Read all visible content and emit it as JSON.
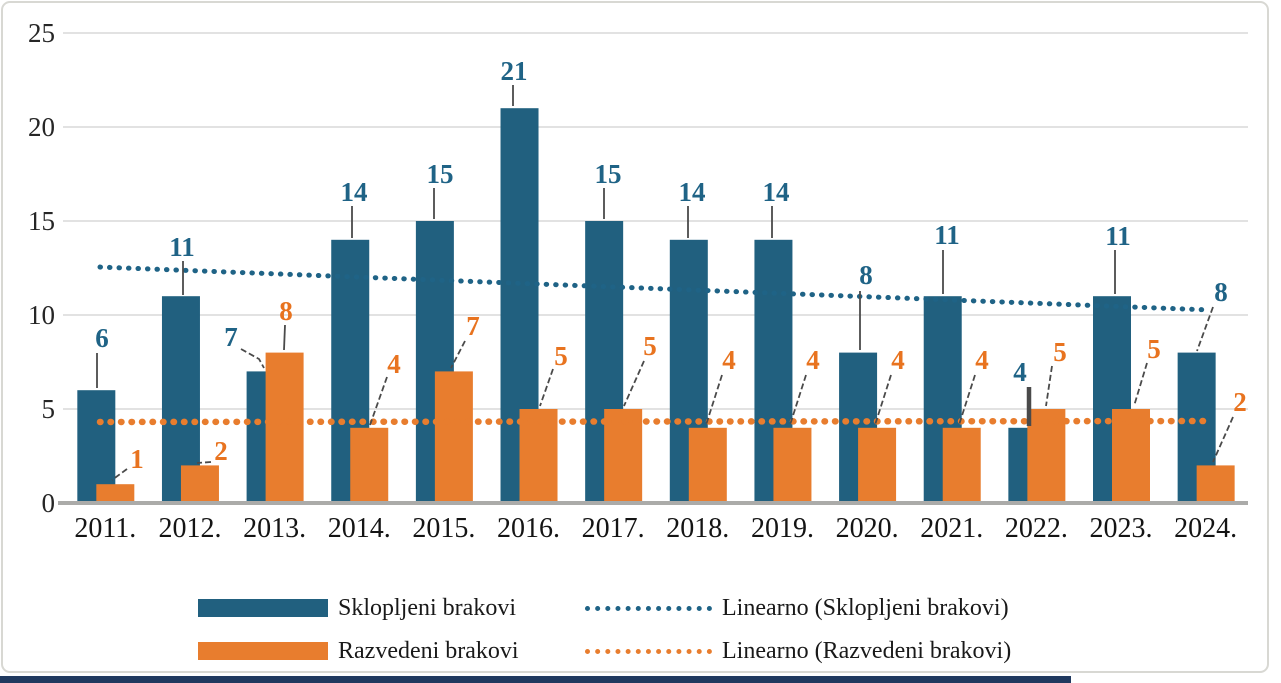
{
  "chart_data": {
    "type": "bar",
    "title": "",
    "categories": [
      "2011.",
      "2012.",
      "2013.",
      "2014.",
      "2015.",
      "2016.",
      "2017.",
      "2018.",
      "2019.",
      "2020.",
      "2021.",
      "2022.",
      "2023.",
      "2024."
    ],
    "series": [
      {
        "name": "Sklopljeni brakovi",
        "color": "#21607f",
        "label_color": "#1f6386",
        "values": [
          6,
          11,
          7,
          14,
          15,
          21,
          15,
          14,
          14,
          8,
          11,
          4,
          11,
          8
        ]
      },
      {
        "name": "Razvedeni brakovi",
        "color": "#e87d2e",
        "label_color": "#e8731f",
        "values": [
          1,
          2,
          8,
          4,
          7,
          5,
          5,
          4,
          4,
          4,
          4,
          5,
          5,
          2
        ]
      }
    ],
    "trendlines": [
      {
        "name": "Linearno (Sklopljeni brakovi)",
        "color": "#1f6386",
        "start_value": 12.55,
        "end_value": 10.27
      },
      {
        "name": "Linearno (Razvedeni brakovi)",
        "color": "#e87d2e",
        "start_value": 4.31,
        "end_value": 4.36
      }
    ],
    "y_axis": {
      "min": 0,
      "max": 25,
      "ticks": [
        0,
        5,
        10,
        15,
        20,
        25
      ]
    },
    "grid": true,
    "legend_position": "bottom",
    "data_labels": true
  },
  "legend": {
    "items": [
      {
        "label": "Sklopljeni brakovi",
        "marker": "bar",
        "color": "#21607f"
      },
      {
        "label": "Linearno (Sklopljeni brakovi)",
        "marker": "dotted-line",
        "color": "#1f6386"
      },
      {
        "label": "Razvedeni brakovi",
        "marker": "bar",
        "color": "#e87d2e"
      },
      {
        "label": "Linearno (Razvedeni brakovi)",
        "marker": "dotted-line",
        "color": "#e87d2e"
      }
    ]
  },
  "colors": {
    "gridline": "#d9d9d9",
    "zero_axis": "#ababa9",
    "tick_text": "#262626",
    "category_text": "#141414",
    "leader_line": "#4a4a4a",
    "figure_border": "#d8d8d3",
    "bottom_strip": "#20395f"
  }
}
